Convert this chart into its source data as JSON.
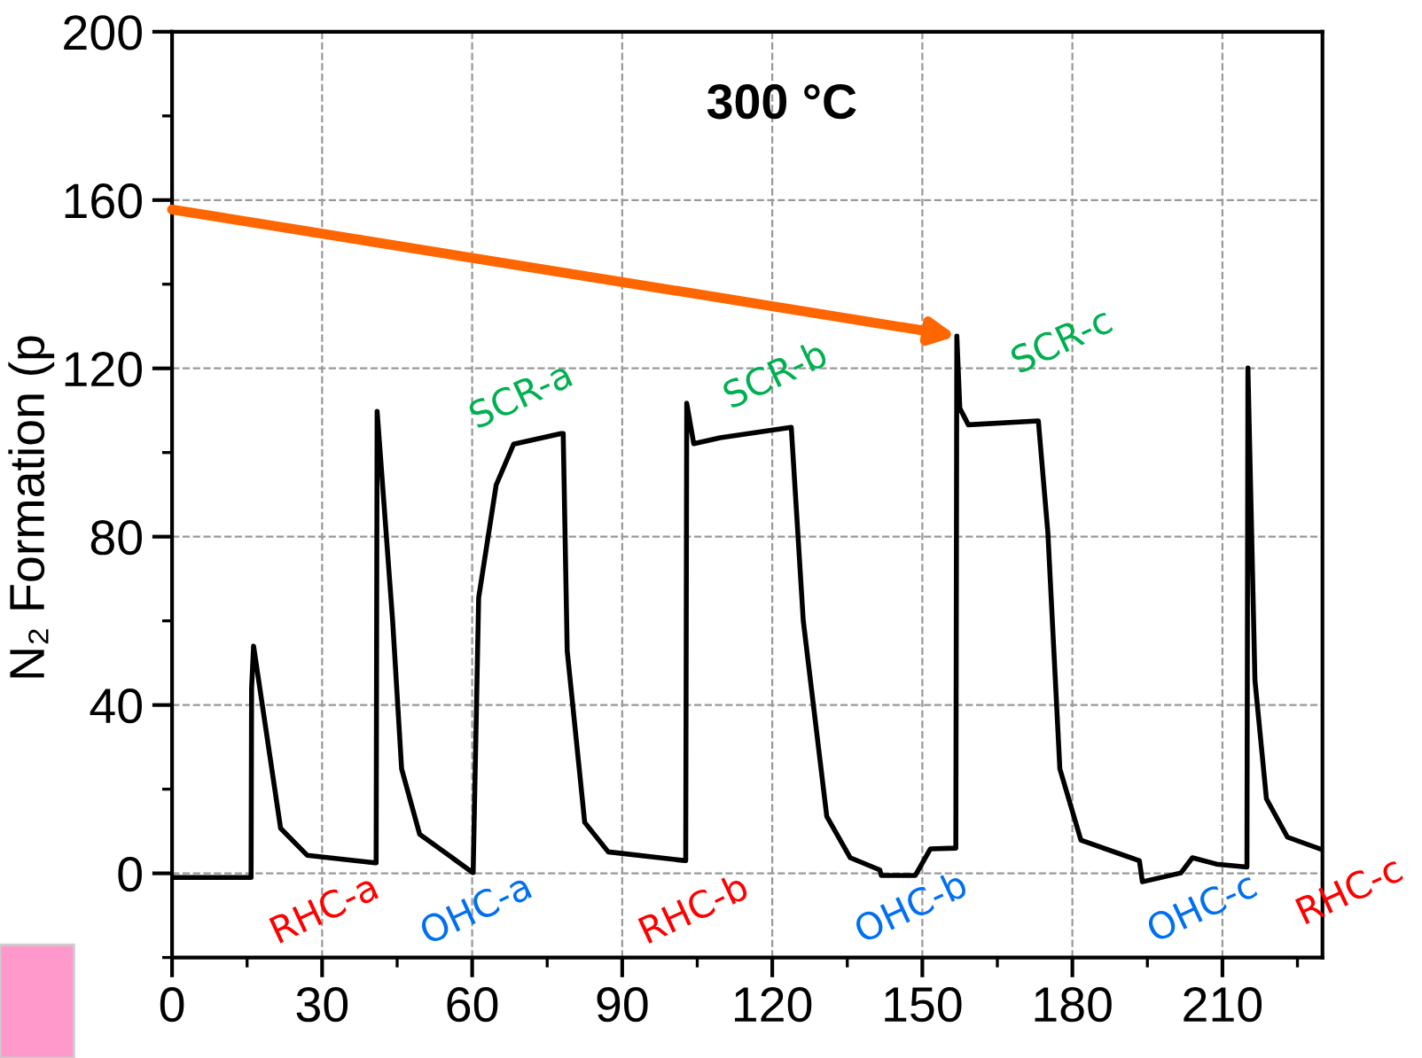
{
  "chart_data": {
    "type": "line",
    "title": "300 °C",
    "ylabel": "N₂ Formation (p",
    "x": [
      0,
      15.8,
      15.9,
      16.3,
      21.7,
      27,
      40.6,
      40.8,
      41.0,
      44.1,
      45.9,
      49.5,
      60.1,
      60.2,
      61.3,
      64.8,
      68.3,
      77.8,
      78.2,
      79,
      82.5,
      87.2,
      102.6,
      102.7,
      102.9,
      104.3,
      109.6,
      123.8,
      126.2,
      130.9,
      135.6,
      141.5,
      141.8,
      148.6,
      151.6,
      156.7,
      156.9,
      157.5,
      159.2,
      173.2,
      175.1,
      177.5,
      181.7,
      193.4,
      194,
      201.7,
      204,
      208.8,
      214.9,
      215.1,
      216.5,
      218.8,
      223,
      229.5
    ],
    "series": [
      {
        "color": "#000000",
        "values": [
          -1,
          -1,
          44,
          54,
          10.7,
          4.3,
          2.5,
          2.5,
          109.8,
          60,
          24.8,
          9.3,
          0.2,
          0.2,
          65.5,
          92.3,
          102,
          104.5,
          104.5,
          52.9,
          12.1,
          5.1,
          3,
          3,
          111.7,
          102.1,
          103.5,
          106,
          60,
          13.5,
          3.7,
          0.8,
          -0.5,
          -0.5,
          5.8,
          6,
          127.7,
          110.5,
          106.6,
          107.5,
          81,
          24.8,
          7.9,
          3,
          -2,
          0.1,
          3.7,
          2.2,
          1.5,
          120.1,
          45.9,
          17.7,
          8.6,
          5.8
        ]
      }
    ],
    "xlim": [
      0,
      230
    ],
    "ylim": [
      -20,
      200
    ],
    "xticks": [
      0,
      30,
      60,
      90,
      120,
      150,
      180,
      210
    ],
    "yticks": [
      0,
      40,
      80,
      120,
      160,
      200
    ],
    "grid": true,
    "line_style": "solid",
    "marker": "none",
    "annotations": [
      "SCR-a",
      "SCR-b",
      "SCR-c",
      "RHC-a",
      "OHC-a",
      "RHC-b",
      "OHC-b",
      "OHC-c",
      "RHC-c"
    ]
  }
}
